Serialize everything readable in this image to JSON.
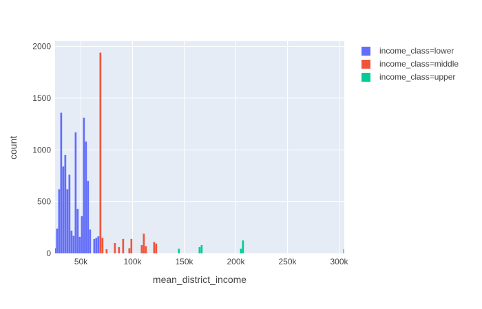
{
  "chart_data": {
    "type": "bar",
    "subtype": "histogram",
    "barmode": "overlay",
    "xlabel": "mean_district_income",
    "ylabel": "count",
    "xlim": [
      25000,
      305000
    ],
    "ylim": [
      0,
      2050
    ],
    "bin_width": 2000,
    "x_ticks": [
      {
        "value": 50000,
        "label": "50k"
      },
      {
        "value": 100000,
        "label": "100k"
      },
      {
        "value": 150000,
        "label": "150k"
      },
      {
        "value": 200000,
        "label": "200k"
      },
      {
        "value": 250000,
        "label": "250k"
      },
      {
        "value": 300000,
        "label": "300k"
      }
    ],
    "y_ticks": [
      {
        "value": 0,
        "label": "0"
      },
      {
        "value": 500,
        "label": "500"
      },
      {
        "value": 1000,
        "label": "1000"
      },
      {
        "value": 1500,
        "label": "1500"
      },
      {
        "value": 2000,
        "label": "2000"
      }
    ],
    "grid": true,
    "legend_position": "top-right",
    "background_color": "#E5ECF6",
    "series": [
      {
        "name": "income_class=lower",
        "color": "#636EFA",
        "bins": [
          {
            "x": 25000,
            "y": 50
          },
          {
            "x": 27000,
            "y": 240
          },
          {
            "x": 29000,
            "y": 620
          },
          {
            "x": 31000,
            "y": 1360
          },
          {
            "x": 33000,
            "y": 840
          },
          {
            "x": 35000,
            "y": 950
          },
          {
            "x": 37000,
            "y": 620
          },
          {
            "x": 39000,
            "y": 760
          },
          {
            "x": 41000,
            "y": 220
          },
          {
            "x": 43000,
            "y": 170
          },
          {
            "x": 45000,
            "y": 1170
          },
          {
            "x": 47000,
            "y": 430
          },
          {
            "x": 49000,
            "y": 160
          },
          {
            "x": 51000,
            "y": 360
          },
          {
            "x": 53000,
            "y": 1310
          },
          {
            "x": 55000,
            "y": 1080
          },
          {
            "x": 57000,
            "y": 700
          },
          {
            "x": 59000,
            "y": 230
          },
          {
            "x": 61000,
            "y": 0
          },
          {
            "x": 63000,
            "y": 140
          },
          {
            "x": 65000,
            "y": 150
          },
          {
            "x": 67000,
            "y": 165
          }
        ]
      },
      {
        "name": "income_class=middle",
        "color": "#EF553B",
        "bins": [
          {
            "x": 69000,
            "y": 1940
          },
          {
            "x": 71000,
            "y": 150
          },
          {
            "x": 75000,
            "y": 40
          },
          {
            "x": 83000,
            "y": 100
          },
          {
            "x": 87000,
            "y": 60
          },
          {
            "x": 91000,
            "y": 140
          },
          {
            "x": 97000,
            "y": 50
          },
          {
            "x": 99000,
            "y": 140
          },
          {
            "x": 109000,
            "y": 80
          },
          {
            "x": 111000,
            "y": 190
          },
          {
            "x": 113000,
            "y": 70
          },
          {
            "x": 121000,
            "y": 110
          },
          {
            "x": 123000,
            "y": 95
          }
        ]
      },
      {
        "name": "income_class=upper",
        "color": "#00CC96",
        "bins": [
          {
            "x": 145000,
            "y": 45
          },
          {
            "x": 165000,
            "y": 60
          },
          {
            "x": 167000,
            "y": 80
          },
          {
            "x": 205000,
            "y": 45
          },
          {
            "x": 207000,
            "y": 125
          },
          {
            "x": 305000,
            "y": 40
          }
        ]
      }
    ]
  }
}
